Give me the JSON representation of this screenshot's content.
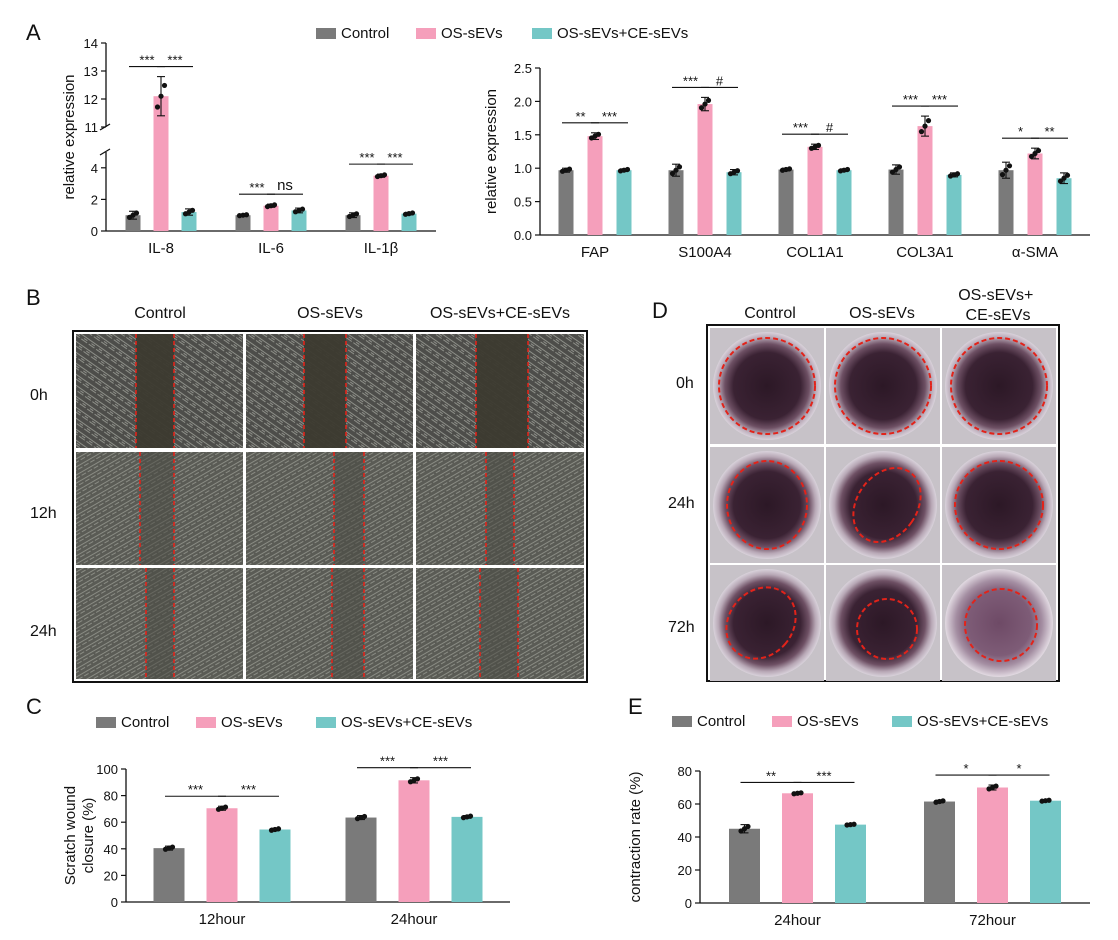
{
  "colors": {
    "control": "#7a7a7a",
    "os": "#f59fbb",
    "osce": "#74c7c6"
  },
  "panels": {
    "A": "A",
    "B": "B",
    "C": "C",
    "D": "D",
    "E": "E"
  },
  "legend": [
    "Control",
    "OS-sEVs",
    "OS-sEVs+CE-sEVs"
  ],
  "chart_data": [
    {
      "id": "A1",
      "type": "bar",
      "ylabel": "relative expression",
      "broken_axis": true,
      "ylim_lower": [
        0,
        5
      ],
      "ylim_upper": [
        11,
        14
      ],
      "yticks": [
        "0",
        "2",
        "4",
        "11",
        "12",
        "13",
        "14"
      ],
      "categories": [
        "IL-8",
        "IL-6",
        "IL-1β"
      ],
      "series": [
        {
          "name": "Control",
          "values": [
            1.0,
            1.0,
            1.0
          ],
          "err": [
            0.25,
            0.05,
            0.15
          ]
        },
        {
          "name": "OS-sEVs",
          "values": [
            12.1,
            1.6,
            3.5
          ],
          "err": [
            0.7,
            0.1,
            0.1
          ]
        },
        {
          "name": "OS-sEVs+CE-sEVs",
          "values": [
            1.2,
            1.3,
            1.1
          ],
          "err": [
            0.2,
            0.15,
            0.08
          ]
        }
      ],
      "significance": [
        {
          "cat": 0,
          "pair": [
            0,
            1
          ],
          "label": "***"
        },
        {
          "cat": 0,
          "pair": [
            1,
            2
          ],
          "label": "***"
        },
        {
          "cat": 1,
          "pair": [
            0,
            1
          ],
          "label": "***"
        },
        {
          "cat": 1,
          "pair": [
            1,
            2
          ],
          "label": "ns"
        },
        {
          "cat": 2,
          "pair": [
            0,
            1
          ],
          "label": "***"
        },
        {
          "cat": 2,
          "pair": [
            1,
            2
          ],
          "label": "***"
        }
      ]
    },
    {
      "id": "A2",
      "type": "bar",
      "ylabel": "relative expression",
      "ylim": [
        0,
        2.5
      ],
      "yticks": [
        "0.0",
        "0.5",
        "1.0",
        "1.5",
        "2.0",
        "2.5"
      ],
      "categories": [
        "FAP",
        "S100A4",
        "COL1A1",
        "COL3A1",
        "α-SMA"
      ],
      "series": [
        {
          "name": "Control",
          "values": [
            0.97,
            0.97,
            0.98,
            0.98,
            0.97
          ],
          "err": [
            0.03,
            0.09,
            0.02,
            0.07,
            0.12
          ]
        },
        {
          "name": "OS-sEVs",
          "values": [
            1.48,
            1.96,
            1.32,
            1.63,
            1.22
          ],
          "err": [
            0.05,
            0.1,
            0.04,
            0.15,
            0.08
          ]
        },
        {
          "name": "OS-sEVs+CE-sEVs",
          "values": [
            0.97,
            0.94,
            0.97,
            0.9,
            0.85
          ],
          "err": [
            0.02,
            0.04,
            0.02,
            0.03,
            0.08
          ]
        }
      ],
      "significance": [
        {
          "cat": 0,
          "pair": [
            0,
            1
          ],
          "label": "**"
        },
        {
          "cat": 0,
          "pair": [
            1,
            2
          ],
          "label": "***"
        },
        {
          "cat": 1,
          "pair": [
            0,
            1
          ],
          "label": "***"
        },
        {
          "cat": 1,
          "pair": [
            1,
            2
          ],
          "label": "#"
        },
        {
          "cat": 2,
          "pair": [
            0,
            1
          ],
          "label": "***"
        },
        {
          "cat": 2,
          "pair": [
            1,
            2
          ],
          "label": "#"
        },
        {
          "cat": 3,
          "pair": [
            0,
            1
          ],
          "label": "***"
        },
        {
          "cat": 3,
          "pair": [
            1,
            2
          ],
          "label": "***"
        },
        {
          "cat": 4,
          "pair": [
            0,
            1
          ],
          "label": "*"
        },
        {
          "cat": 4,
          "pair": [
            1,
            2
          ],
          "label": "**"
        }
      ]
    },
    {
      "id": "C",
      "type": "bar",
      "ylabel": [
        "Scratch wound",
        "closure (%)"
      ],
      "ylim": [
        0,
        100
      ],
      "yticks": [
        "0",
        "20",
        "40",
        "60",
        "80",
        "100"
      ],
      "categories": [
        "12hour",
        "24hour"
      ],
      "series": [
        {
          "name": "Control",
          "values": [
            40.5,
            63.5
          ],
          "err": [
            1.5,
            1.5
          ]
        },
        {
          "name": "OS-sEVs",
          "values": [
            70.5,
            91.5
          ],
          "err": [
            1.5,
            2.0
          ]
        },
        {
          "name": "OS-sEVs+CE-sEVs",
          "values": [
            54.5,
            64.0
          ],
          "err": [
            1.0,
            1.0
          ]
        }
      ],
      "significance": [
        {
          "cat": 0,
          "pair": [
            0,
            1
          ],
          "label": "***"
        },
        {
          "cat": 0,
          "pair": [
            1,
            2
          ],
          "label": "***"
        },
        {
          "cat": 1,
          "pair": [
            0,
            1
          ],
          "label": "***"
        },
        {
          "cat": 1,
          "pair": [
            1,
            2
          ],
          "label": "***"
        }
      ]
    },
    {
      "id": "E",
      "type": "bar",
      "ylabel": "contraction rate (%)",
      "ylim": [
        0,
        80
      ],
      "yticks": [
        "0",
        "20",
        "40",
        "60",
        "80"
      ],
      "categories": [
        "24hour",
        "72hour"
      ],
      "series": [
        {
          "name": "Control",
          "values": [
            45.0,
            61.5
          ],
          "err": [
            2.5,
            0.8
          ]
        },
        {
          "name": "OS-sEVs",
          "values": [
            66.5,
            70.0
          ],
          "err": [
            0.5,
            1.5
          ]
        },
        {
          "name": "OS-sEVs+CE-sEVs",
          "values": [
            47.5,
            62.0
          ],
          "err": [
            0.4,
            0.5
          ]
        }
      ],
      "significance": [
        {
          "cat": 0,
          "pair": [
            0,
            1
          ],
          "label": "**"
        },
        {
          "cat": 0,
          "pair": [
            1,
            2
          ],
          "label": "***"
        },
        {
          "cat": 1,
          "pair": [
            0,
            1
          ],
          "label": "*"
        },
        {
          "cat": 1,
          "pair": [
            1,
            2
          ],
          "label": "*"
        }
      ]
    }
  ],
  "panel_B": {
    "columns": [
      "Control",
      "OS-sEVs",
      "OS-sEVs+CE-sEVs"
    ],
    "rows": [
      "0h",
      "12h",
      "24h"
    ]
  },
  "panel_D": {
    "columns": [
      "Control",
      "OS-sEVs",
      "OS-sEVs+\nCE-sEVs"
    ],
    "rows": [
      "0h",
      "24h",
      "72h"
    ]
  }
}
